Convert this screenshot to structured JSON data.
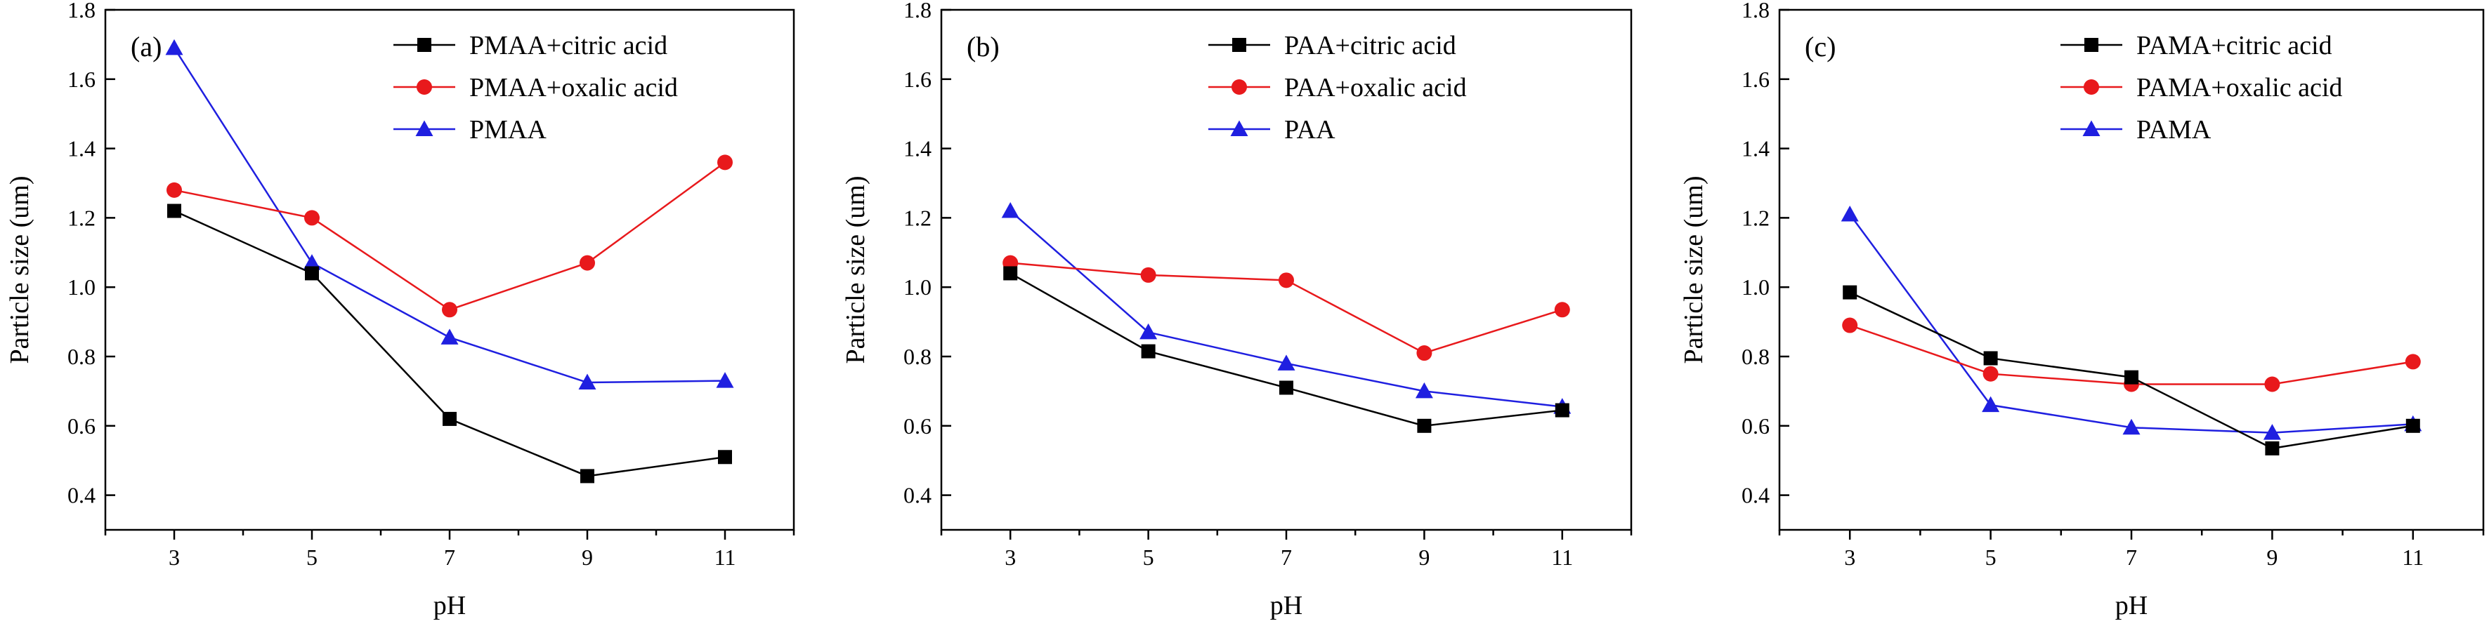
{
  "chart_data": [
    {
      "type": "line",
      "panel_label": "(a)",
      "xlabel": "pH",
      "ylabel": "Particle size (um)",
      "x": [
        3,
        5,
        7,
        9,
        11
      ],
      "xlim": [
        2,
        12
      ],
      "ylim": [
        0.3,
        1.8
      ],
      "y_ticks": [
        "0.4",
        "0.6",
        "0.8",
        "1.0",
        "1.2",
        "1.4",
        "1.6",
        "1.8"
      ],
      "x_ticks": [
        "3",
        "5",
        "7",
        "9",
        "11"
      ],
      "legend_position": "top-right",
      "series": [
        {
          "name": "PMAA+citric acid",
          "color": "#000000",
          "marker": "square",
          "values": [
            1.22,
            1.04,
            0.62,
            0.455,
            0.51
          ]
        },
        {
          "name": "PMAA+oxalic acid",
          "color": "#e8191c",
          "marker": "circle",
          "values": [
            1.28,
            1.2,
            0.935,
            1.07,
            1.36
          ]
        },
        {
          "name": "PMAA",
          "color": "#1f1fe0",
          "marker": "triangle",
          "values": [
            1.69,
            1.07,
            0.855,
            0.725,
            0.73
          ]
        }
      ]
    },
    {
      "type": "line",
      "panel_label": "(b)",
      "xlabel": "pH",
      "ylabel": "Particle size (um)",
      "x": [
        3,
        5,
        7,
        9,
        11
      ],
      "xlim": [
        2,
        12
      ],
      "ylim": [
        0.3,
        1.8
      ],
      "y_ticks": [
        "0.4",
        "0.6",
        "0.8",
        "1.0",
        "1.2",
        "1.4",
        "1.6",
        "1.8"
      ],
      "x_ticks": [
        "3",
        "5",
        "7",
        "9",
        "11"
      ],
      "legend_position": "top-right",
      "series": [
        {
          "name": "PAA+citric acid",
          "color": "#000000",
          "marker": "square",
          "values": [
            1.04,
            0.815,
            0.71,
            0.6,
            0.645
          ]
        },
        {
          "name": "PAA+oxalic acid",
          "color": "#e8191c",
          "marker": "circle",
          "values": [
            1.07,
            1.035,
            1.02,
            0.81,
            0.935
          ]
        },
        {
          "name": "PAA",
          "color": "#1f1fe0",
          "marker": "triangle",
          "values": [
            1.22,
            0.87,
            0.78,
            0.7,
            0.655
          ]
        }
      ]
    },
    {
      "type": "line",
      "panel_label": "(c)",
      "xlabel": "pH",
      "ylabel": "Particle size (um)",
      "x": [
        3,
        5,
        7,
        9,
        11
      ],
      "xlim": [
        2,
        12
      ],
      "ylim": [
        0.3,
        1.8
      ],
      "y_ticks": [
        "0.4",
        "0.6",
        "0.8",
        "1.0",
        "1.2",
        "1.4",
        "1.6",
        "1.8"
      ],
      "x_ticks": [
        "3",
        "5",
        "7",
        "9",
        "11"
      ],
      "legend_position": "top-right",
      "series": [
        {
          "name": "PAMA+citric acid",
          "color": "#000000",
          "marker": "square",
          "values": [
            0.985,
            0.795,
            0.74,
            0.535,
            0.6
          ]
        },
        {
          "name": "PAMA+oxalic acid",
          "color": "#e8191c",
          "marker": "circle",
          "values": [
            0.89,
            0.75,
            0.72,
            0.72,
            0.785
          ]
        },
        {
          "name": "PAMA",
          "color": "#1f1fe0",
          "marker": "triangle",
          "values": [
            1.21,
            0.66,
            0.595,
            0.58,
            0.605
          ]
        }
      ]
    }
  ]
}
